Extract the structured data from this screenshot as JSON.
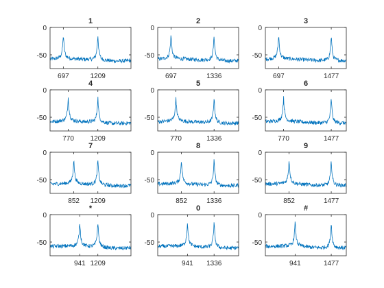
{
  "figure": {
    "background": "#ffffff",
    "line_color": "#0072bd",
    "axis_color": "#262626"
  },
  "chart_data": [
    {
      "type": "line",
      "title": "1",
      "low_freq": 697,
      "high_freq": 1209,
      "ylim": [
        -75,
        0
      ],
      "yticks": [
        0,
        -50
      ],
      "xticks": [
        697,
        1209
      ],
      "xlim": [
        500,
        1700
      ],
      "grid": false
    },
    {
      "type": "line",
      "title": "2",
      "low_freq": 697,
      "high_freq": 1336,
      "ylim": [
        -75,
        0
      ],
      "yticks": [
        0,
        -50
      ],
      "xticks": [
        697,
        1336
      ],
      "xlim": [
        500,
        1700
      ],
      "grid": false
    },
    {
      "type": "line",
      "title": "3",
      "low_freq": 697,
      "high_freq": 1477,
      "ylim": [
        -75,
        0
      ],
      "yticks": [
        0,
        -50
      ],
      "xticks": [
        697,
        1477
      ],
      "xlim": [
        500,
        1700
      ],
      "grid": false
    },
    {
      "type": "line",
      "title": "4",
      "low_freq": 770,
      "high_freq": 1209,
      "ylim": [
        -75,
        0
      ],
      "yticks": [
        0,
        -50
      ],
      "xticks": [
        770,
        1209
      ],
      "xlim": [
        500,
        1700
      ],
      "grid": false
    },
    {
      "type": "line",
      "title": "5",
      "low_freq": 770,
      "high_freq": 1336,
      "ylim": [
        -75,
        0
      ],
      "yticks": [
        0,
        -50
      ],
      "xticks": [
        770,
        1336
      ],
      "xlim": [
        500,
        1700
      ],
      "grid": false
    },
    {
      "type": "line",
      "title": "6",
      "low_freq": 770,
      "high_freq": 1477,
      "ylim": [
        -75,
        0
      ],
      "yticks": [
        0,
        -50
      ],
      "xticks": [
        770,
        1477
      ],
      "xlim": [
        500,
        1700
      ],
      "grid": false
    },
    {
      "type": "line",
      "title": "7",
      "low_freq": 852,
      "high_freq": 1209,
      "ylim": [
        -75,
        0
      ],
      "yticks": [
        0,
        -50
      ],
      "xticks": [
        852,
        1209
      ],
      "xlim": [
        500,
        1700
      ],
      "grid": false
    },
    {
      "type": "line",
      "title": "8",
      "low_freq": 852,
      "high_freq": 1336,
      "ylim": [
        -75,
        0
      ],
      "yticks": [
        0,
        -50
      ],
      "xticks": [
        852,
        1336
      ],
      "xlim": [
        500,
        1700
      ],
      "grid": false
    },
    {
      "type": "line",
      "title": "9",
      "low_freq": 852,
      "high_freq": 1477,
      "ylim": [
        -75,
        0
      ],
      "yticks": [
        0,
        -50
      ],
      "xticks": [
        852,
        1477
      ],
      "xlim": [
        500,
        1700
      ],
      "grid": false
    },
    {
      "type": "line",
      "title": "*",
      "low_freq": 941,
      "high_freq": 1209,
      "ylim": [
        -75,
        0
      ],
      "yticks": [
        0,
        -50
      ],
      "xticks": [
        941,
        1209
      ],
      "xlim": [
        500,
        1700
      ],
      "grid": false
    },
    {
      "type": "line",
      "title": "0",
      "low_freq": 941,
      "high_freq": 1336,
      "ylim": [
        -75,
        0
      ],
      "yticks": [
        0,
        -50
      ],
      "xticks": [
        941,
        1336
      ],
      "xlim": [
        500,
        1700
      ],
      "grid": false
    },
    {
      "type": "line",
      "title": "#",
      "low_freq": 941,
      "high_freq": 1477,
      "ylim": [
        -75,
        0
      ],
      "yticks": [
        0,
        -50
      ],
      "xticks": [
        941,
        1477
      ],
      "xlim": [
        500,
        1700
      ],
      "grid": false
    }
  ]
}
